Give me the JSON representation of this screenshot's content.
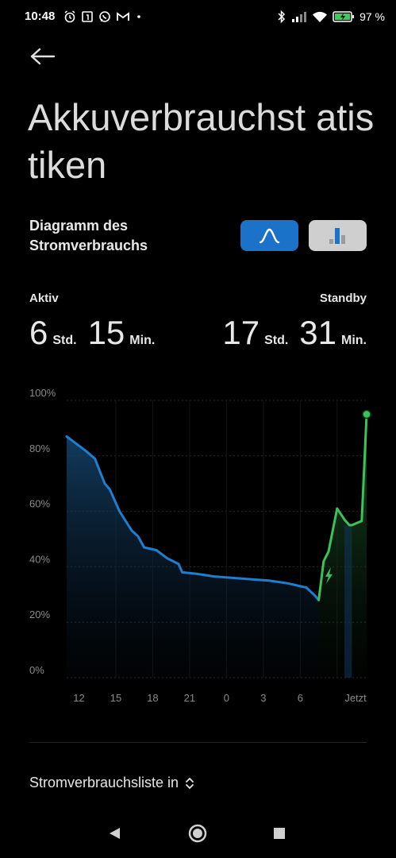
{
  "status_bar": {
    "time": "10:48",
    "battery_percent": "97 %",
    "icons_left": [
      "alarm-icon",
      "calendar-icon",
      "whatsapp-icon",
      "gmail-icon",
      "dot-icon"
    ],
    "icons_right": [
      "bluetooth-icon",
      "signal-icon",
      "wifi-icon",
      "battery-charging-icon"
    ]
  },
  "header": {
    "title": "Akkuverbrauchst atistiken"
  },
  "diagram": {
    "title_line1": "Diagramm des",
    "title_line2": "Stromverbrauchs",
    "modes": [
      "line-mode",
      "bar-mode"
    ],
    "selected_mode": "line-mode"
  },
  "usage": {
    "active_label": "Aktiv",
    "active_hours": "6",
    "active_hours_unit": "Std.",
    "active_minutes": "15",
    "active_minutes_unit": "Min.",
    "standby_label": "Standby",
    "standby_hours": "17",
    "standby_hours_unit": "Std.",
    "standby_minutes": "31",
    "standby_minutes_unit": "Min."
  },
  "chart_data": {
    "type": "area",
    "ylim": [
      0,
      100
    ],
    "y_ticks": [
      "100%",
      "80%",
      "60%",
      "40%",
      "20%",
      "0%"
    ],
    "y_tick_values": [
      100,
      80,
      60,
      40,
      20,
      0
    ],
    "x_ticks": [
      "12",
      "15",
      "18",
      "21",
      "0",
      "3",
      "6",
      "Jetzt"
    ],
    "x_tick_hours": [
      0,
      3,
      6,
      9,
      12,
      15,
      18,
      22.5
    ],
    "grid": true,
    "series": [
      {
        "kind": "discharge",
        "color": "#1e7fd0",
        "points": [
          [
            -1,
            87
          ],
          [
            0.5,
            82
          ],
          [
            1.3,
            79
          ],
          [
            2.1,
            70
          ],
          [
            2.5,
            68
          ],
          [
            3.3,
            60
          ],
          [
            4.3,
            53
          ],
          [
            4.8,
            51
          ],
          [
            5.3,
            47
          ],
          [
            6.3,
            46
          ],
          [
            7.2,
            43
          ],
          [
            8.1,
            41
          ],
          [
            8.4,
            38
          ],
          [
            9.5,
            37.5
          ],
          [
            11,
            36.5
          ],
          [
            12.5,
            36
          ],
          [
            14,
            35.5
          ],
          [
            15.5,
            35
          ],
          [
            17,
            34
          ],
          [
            18.5,
            32.5
          ],
          [
            19.1,
            30
          ],
          [
            19.5,
            28
          ]
        ]
      },
      {
        "kind": "charge",
        "color": "#3cc15b",
        "points": [
          [
            19.5,
            28
          ],
          [
            19.9,
            42
          ],
          [
            20.3,
            45.5
          ],
          [
            21.0,
            61
          ],
          [
            21.6,
            57
          ],
          [
            22.0,
            55
          ],
          [
            22.2,
            55
          ],
          [
            23.0,
            56.5
          ],
          [
            23.4,
            95
          ]
        ]
      }
    ],
    "charge_icon": "lightning-icon",
    "end_marker": "current-level-dot"
  },
  "list": {
    "title": "Stromverbrauchsliste in",
    "chevron": "sort-chevron-icon"
  },
  "navbar": {
    "buttons": [
      "back-triangle-icon",
      "home-circle-icon",
      "recents-square-icon"
    ]
  }
}
